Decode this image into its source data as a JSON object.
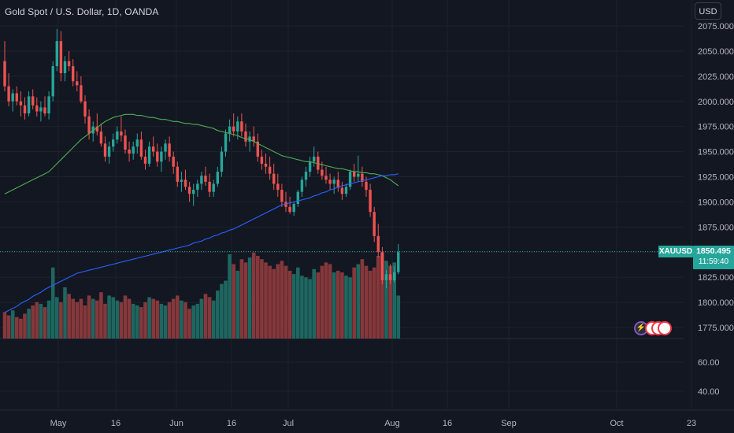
{
  "header": {
    "title": "Gold Spot / U.S. Dollar, 1D, OANDA",
    "currency_button": "USD"
  },
  "price_badge": {
    "symbol": "XAUUSD",
    "price": "1850.495",
    "countdown": "11:59:40"
  },
  "colors": {
    "bg": "#131722",
    "up": "#26a69a",
    "down": "#ef5350",
    "ma_fast": "#4caf50",
    "ma_slow": "#2962ff",
    "grid": "#1e222d",
    "text": "#b2b5be"
  },
  "chart_data": {
    "type": "candlestick",
    "title": "Gold Spot / U.S. Dollar, 1D, OANDA",
    "price_axis": {
      "ticks": [
        2075,
        2050,
        2025,
        2000,
        1975,
        1950,
        1925,
        1900,
        1875,
        1850,
        1825,
        1800,
        1775
      ],
      "tick_labels": [
        "2075.000",
        "2050.000",
        "2025.000",
        "2000.000",
        "1975.000",
        "1950.000",
        "1925.000",
        "1900.000",
        "1875.000",
        "1850.000",
        "1825.000",
        "1800.000",
        "1775.000"
      ],
      "range": [
        1768,
        2086
      ]
    },
    "volume_axis": {
      "ticks": [
        60,
        40
      ],
      "tick_labels": [
        "60.00",
        "40.00"
      ]
    },
    "time_axis": {
      "labels": [
        "May",
        "16",
        "Jun",
        "16",
        "Jul",
        "Aug",
        "16",
        "Sep",
        "Oct",
        "23"
      ]
    },
    "current_price": 1850.495,
    "grid": true,
    "candles": [
      [
        2040,
        2060,
        2010,
        2015
      ],
      [
        2015,
        2028,
        1995,
        2000
      ],
      [
        2000,
        2012,
        1990,
        2008
      ],
      [
        2008,
        2015,
        1996,
        2000
      ],
      [
        2000,
        2010,
        1985,
        1996
      ],
      [
        1996,
        2004,
        1982,
        1988
      ],
      [
        1988,
        2010,
        1985,
        2005
      ],
      [
        2005,
        2012,
        1992,
        1996
      ],
      [
        1996,
        2004,
        1985,
        1990
      ],
      [
        1990,
        2000,
        1980,
        1994
      ],
      [
        1994,
        2005,
        1985,
        1988
      ],
      [
        1988,
        2010,
        1982,
        2005
      ],
      [
        2005,
        2040,
        2000,
        2035
      ],
      [
        2035,
        2072,
        2030,
        2060
      ],
      [
        2060,
        2070,
        2020,
        2028
      ],
      [
        2028,
        2045,
        2020,
        2040
      ],
      [
        2040,
        2050,
        2030,
        2035
      ],
      [
        2035,
        2042,
        2015,
        2020
      ],
      [
        2020,
        2030,
        2010,
        2016
      ],
      [
        2016,
        2025,
        1998,
        2000
      ],
      [
        2000,
        2006,
        1978,
        1985
      ],
      [
        1985,
        1992,
        1962,
        1968
      ],
      [
        1968,
        1980,
        1960,
        1975
      ],
      [
        1975,
        1988,
        1966,
        1970
      ],
      [
        1970,
        1978,
        1955,
        1958
      ],
      [
        1958,
        1965,
        1940,
        1945
      ],
      [
        1945,
        1960,
        1938,
        1955
      ],
      [
        1955,
        1968,
        1950,
        1962
      ],
      [
        1962,
        1975,
        1958,
        1970
      ],
      [
        1970,
        1985,
        1960,
        1966
      ],
      [
        1966,
        1972,
        1948,
        1952
      ],
      [
        1952,
        1960,
        1940,
        1948
      ],
      [
        1948,
        1960,
        1942,
        1955
      ],
      [
        1955,
        1968,
        1948,
        1962
      ],
      [
        1962,
        1970,
        1942,
        1945
      ],
      [
        1945,
        1952,
        1932,
        1938
      ],
      [
        1938,
        1960,
        1935,
        1955
      ],
      [
        1955,
        1965,
        1945,
        1950
      ],
      [
        1950,
        1958,
        1935,
        1940
      ],
      [
        1940,
        1955,
        1930,
        1950
      ],
      [
        1950,
        1962,
        1942,
        1958
      ],
      [
        1958,
        1965,
        1940,
        1945
      ],
      [
        1945,
        1950,
        1928,
        1935
      ],
      [
        1935,
        1940,
        1915,
        1920
      ],
      [
        1920,
        1930,
        1910,
        1922
      ],
      [
        1922,
        1932,
        1912,
        1915
      ],
      [
        1915,
        1920,
        1900,
        1908
      ],
      [
        1908,
        1918,
        1896,
        1912
      ],
      [
        1912,
        1922,
        1905,
        1918
      ],
      [
        1918,
        1930,
        1912,
        1926
      ],
      [
        1926,
        1935,
        1916,
        1920
      ],
      [
        1920,
        1928,
        1905,
        1910
      ],
      [
        1910,
        1922,
        1905,
        1918
      ],
      [
        1918,
        1935,
        1915,
        1930
      ],
      [
        1930,
        1955,
        1925,
        1950
      ],
      [
        1950,
        1972,
        1945,
        1968
      ],
      [
        1968,
        1982,
        1960,
        1975
      ],
      [
        1975,
        1988,
        1965,
        1970
      ],
      [
        1970,
        1985,
        1962,
        1980
      ],
      [
        1980,
        1988,
        1965,
        1970
      ],
      [
        1970,
        1978,
        1955,
        1960
      ],
      [
        1960,
        1970,
        1950,
        1965
      ],
      [
        1965,
        1975,
        1955,
        1960
      ],
      [
        1960,
        1968,
        1940,
        1945
      ],
      [
        1945,
        1952,
        1932,
        1938
      ],
      [
        1938,
        1948,
        1928,
        1935
      ],
      [
        1935,
        1945,
        1922,
        1928
      ],
      [
        1928,
        1938,
        1912,
        1918
      ],
      [
        1918,
        1928,
        1905,
        1912
      ],
      [
        1912,
        1918,
        1895,
        1900
      ],
      [
        1900,
        1910,
        1890,
        1895
      ],
      [
        1895,
        1905,
        1888,
        1890
      ],
      [
        1890,
        1900,
        1886,
        1898
      ],
      [
        1898,
        1912,
        1895,
        1910
      ],
      [
        1910,
        1925,
        1905,
        1922
      ],
      [
        1922,
        1935,
        1915,
        1930
      ],
      [
        1930,
        1945,
        1925,
        1940
      ],
      [
        1940,
        1955,
        1935,
        1945
      ],
      [
        1945,
        1950,
        1928,
        1932
      ],
      [
        1932,
        1940,
        1922,
        1926
      ],
      [
        1926,
        1935,
        1918,
        1922
      ],
      [
        1922,
        1928,
        1912,
        1918
      ],
      [
        1918,
        1925,
        1908,
        1922
      ],
      [
        1922,
        1930,
        1910,
        1914
      ],
      [
        1914,
        1920,
        1902,
        1908
      ],
      [
        1908,
        1918,
        1905,
        1915
      ],
      [
        1915,
        1932,
        1912,
        1930
      ],
      [
        1930,
        1938,
        1920,
        1925
      ],
      [
        1925,
        1946,
        1920,
        1928
      ],
      [
        1928,
        1935,
        1915,
        1920
      ],
      [
        1920,
        1925,
        1905,
        1912
      ],
      [
        1912,
        1918,
        1885,
        1890
      ],
      [
        1890,
        1895,
        1860,
        1866
      ],
      [
        1866,
        1878,
        1845,
        1850
      ],
      [
        1850,
        1855,
        1818,
        1822
      ],
      [
        1822,
        1832,
        1814,
        1828
      ],
      [
        1828,
        1838,
        1818,
        1822
      ],
      [
        1822,
        1836,
        1820,
        1830
      ],
      [
        1830,
        1858,
        1828,
        1850
      ]
    ],
    "volumes": [
      16,
      14,
      17,
      13,
      12,
      15,
      18,
      20,
      22,
      21,
      19,
      23,
      43,
      25,
      22,
      31,
      27,
      24,
      22,
      24,
      20,
      26,
      24,
      23,
      28,
      21,
      26,
      25,
      23,
      22,
      26,
      24,
      21,
      20,
      19,
      22,
      25,
      24,
      23,
      21,
      20,
      22,
      24,
      26,
      23,
      22,
      18,
      20,
      21,
      24,
      27,
      25,
      23,
      29,
      33,
      35,
      51,
      45,
      41,
      48,
      46,
      49,
      52,
      50,
      48,
      46,
      44,
      42,
      45,
      47,
      44,
      41,
      39,
      43,
      38,
      37,
      36,
      42,
      40,
      44,
      46,
      45,
      40,
      41,
      40,
      38,
      37,
      43,
      45,
      48,
      44,
      41,
      43,
      50,
      52,
      47,
      44,
      46,
      26
    ],
    "ma_fast": [
      1908,
      1910,
      1912,
      1914,
      1916,
      1918,
      1920,
      1922,
      1924,
      1926,
      1928,
      1930,
      1934,
      1938,
      1942,
      1946,
      1950,
      1954,
      1958,
      1962,
      1965,
      1968,
      1971,
      1974,
      1977,
      1980,
      1982,
      1984,
      1985,
      1986,
      1987,
      1987,
      1987,
      1986,
      1986,
      1985,
      1984,
      1984,
      1983,
      1982,
      1982,
      1981,
      1980,
      1980,
      1979,
      1978,
      1978,
      1977,
      1977,
      1976,
      1975,
      1974,
      1973,
      1971,
      1970,
      1969,
      1968,
      1967,
      1966,
      1964,
      1963,
      1962,
      1960,
      1958,
      1956,
      1954,
      1952,
      1950,
      1948,
      1946,
      1945,
      1944,
      1943,
      1942,
      1941,
      1940,
      1940,
      1939,
      1938,
      1937,
      1936,
      1935,
      1934,
      1933,
      1933,
      1932,
      1931,
      1930,
      1930,
      1929,
      1929,
      1928,
      1928,
      1927,
      1926,
      1924,
      1922,
      1919,
      1916
    ],
    "ma_slow": [
      1790,
      1792,
      1794,
      1796,
      1799,
      1801,
      1803,
      1806,
      1808,
      1810,
      1813,
      1815,
      1817,
      1819,
      1821,
      1823,
      1825,
      1827,
      1829,
      1830,
      1831,
      1832,
      1833,
      1834,
      1835,
      1836,
      1837,
      1838,
      1839,
      1840,
      1841,
      1842,
      1843,
      1844,
      1845,
      1846,
      1847,
      1848,
      1849,
      1850,
      1851,
      1852,
      1853,
      1854,
      1855,
      1856,
      1857,
      1859,
      1860,
      1861,
      1863,
      1864,
      1866,
      1867,
      1869,
      1870,
      1872,
      1873,
      1875,
      1877,
      1879,
      1881,
      1883,
      1885,
      1887,
      1889,
      1891,
      1893,
      1895,
      1897,
      1898,
      1899,
      1900,
      1901,
      1902,
      1903,
      1904,
      1906,
      1907,
      1909,
      1910,
      1912,
      1913,
      1915,
      1916,
      1917,
      1918,
      1919,
      1920,
      1921,
      1922,
      1923,
      1924,
      1925,
      1926,
      1926,
      1927,
      1927,
      1928
    ]
  }
}
